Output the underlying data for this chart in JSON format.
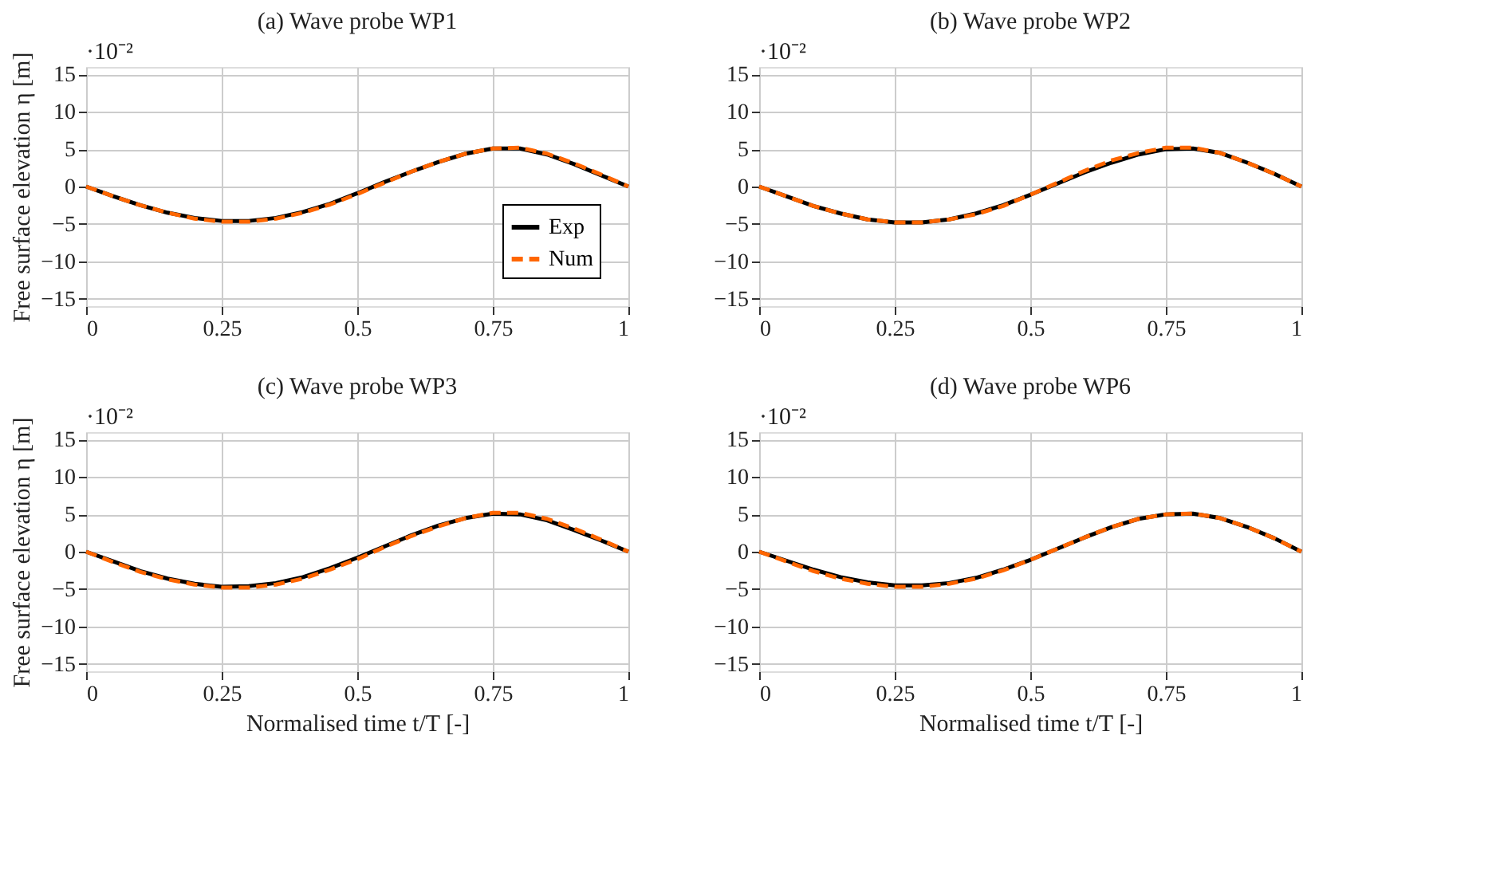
{
  "chart_data": [
    {
      "type": "line",
      "title": "(a) Wave probe WP1",
      "ylabel": "Free surface elevation η [m]",
      "annotations": [
        "·10⁻²"
      ],
      "xlim": [
        0,
        1
      ],
      "xticks": [
        0,
        0.25,
        0.5,
        0.75,
        1
      ],
      "ylim": [
        -16,
        16
      ],
      "yticks": [
        -15,
        -10,
        -5,
        0,
        5,
        10,
        15
      ],
      "grid": true,
      "legend": "bottom right",
      "marker": "none",
      "x": [
        0,
        0.05,
        0.1,
        0.15,
        0.2,
        0.25,
        0.3,
        0.35,
        0.4,
        0.45,
        0.5,
        0.55,
        0.6,
        0.65,
        0.7,
        0.75,
        0.8,
        0.85,
        0.9,
        0.95,
        1
      ],
      "series": [
        {
          "name": "Exp",
          "color": "#000000",
          "line_style": "solid",
          "values": [
            0,
            -1.3,
            -2.5,
            -3.5,
            -4.2,
            -4.6,
            -4.6,
            -4.2,
            -3.4,
            -2.3,
            -0.9,
            0.6,
            2.0,
            3.3,
            4.4,
            5.1,
            5.1,
            4.3,
            3.0,
            1.5,
            0
          ]
        },
        {
          "name": "Num",
          "color": "#ff6600",
          "line_style": "dashed",
          "values": [
            0,
            -1.3,
            -2.5,
            -3.5,
            -4.3,
            -4.7,
            -4.7,
            -4.3,
            -3.5,
            -2.4,
            -1.0,
            0.5,
            2.0,
            3.3,
            4.4,
            5.1,
            5.2,
            4.4,
            3.1,
            1.6,
            0
          ]
        }
      ]
    },
    {
      "type": "line",
      "title": "(b) Wave probe WP2",
      "annotations": [
        "·10⁻²"
      ],
      "xlim": [
        0,
        1
      ],
      "xticks": [
        0,
        0.25,
        0.5,
        0.75,
        1
      ],
      "ylim": [
        -16,
        16
      ],
      "yticks": [
        -15,
        -10,
        -5,
        0,
        5,
        10,
        15
      ],
      "grid": true,
      "marker": "none",
      "x": [
        0,
        0.05,
        0.1,
        0.15,
        0.2,
        0.25,
        0.3,
        0.35,
        0.4,
        0.45,
        0.5,
        0.55,
        0.6,
        0.65,
        0.7,
        0.75,
        0.8,
        0.85,
        0.9,
        0.95,
        1
      ],
      "series": [
        {
          "color": "#000000",
          "line_style": "solid",
          "values": [
            0,
            -1.3,
            -2.6,
            -3.6,
            -4.4,
            -4.8,
            -4.8,
            -4.4,
            -3.6,
            -2.5,
            -1.1,
            0.4,
            1.9,
            3.2,
            4.3,
            5.0,
            5.1,
            4.5,
            3.2,
            1.7,
            0
          ]
        },
        {
          "color": "#ff6600",
          "line_style": "dashed",
          "values": [
            0,
            -1.3,
            -2.6,
            -3.6,
            -4.4,
            -4.8,
            -4.8,
            -4.4,
            -3.7,
            -2.6,
            -1.1,
            0.5,
            2.1,
            3.5,
            4.5,
            5.2,
            5.2,
            4.5,
            3.2,
            1.7,
            0
          ]
        }
      ]
    },
    {
      "type": "line",
      "title": "(c) Wave probe WP3",
      "ylabel": "Free surface elevation η [m]",
      "xlabel": "Normalised time t/T [-]",
      "annotations": [
        "·10⁻²"
      ],
      "xlim": [
        0,
        1
      ],
      "xticks": [
        0,
        0.25,
        0.5,
        0.75,
        1
      ],
      "ylim": [
        -16,
        16
      ],
      "yticks": [
        -15,
        -10,
        -5,
        0,
        5,
        10,
        15
      ],
      "grid": true,
      "marker": "none",
      "x": [
        0,
        0.05,
        0.1,
        0.15,
        0.2,
        0.25,
        0.3,
        0.35,
        0.4,
        0.45,
        0.5,
        0.55,
        0.6,
        0.65,
        0.7,
        0.75,
        0.8,
        0.85,
        0.9,
        0.95,
        1
      ],
      "series": [
        {
          "color": "#000000",
          "line_style": "solid",
          "values": [
            0,
            -1.3,
            -2.6,
            -3.6,
            -4.3,
            -4.7,
            -4.6,
            -4.2,
            -3.4,
            -2.2,
            -0.8,
            0.7,
            2.2,
            3.5,
            4.5,
            5.1,
            5.0,
            4.2,
            2.9,
            1.5,
            0
          ]
        },
        {
          "color": "#ff6600",
          "line_style": "dashed",
          "values": [
            0,
            -1.4,
            -2.7,
            -3.7,
            -4.4,
            -4.8,
            -4.8,
            -4.4,
            -3.6,
            -2.4,
            -1.0,
            0.6,
            2.1,
            3.4,
            4.5,
            5.2,
            5.2,
            4.4,
            3.1,
            1.6,
            0
          ]
        }
      ]
    },
    {
      "type": "line",
      "title": "(d) Wave probe WP6",
      "xlabel": "Normalised time t/T [-]",
      "annotations": [
        "·10⁻²"
      ],
      "xlim": [
        0,
        1
      ],
      "xticks": [
        0,
        0.25,
        0.5,
        0.75,
        1
      ],
      "ylim": [
        -16,
        16
      ],
      "yticks": [
        -15,
        -10,
        -5,
        0,
        5,
        10,
        15
      ],
      "grid": true,
      "marker": "none",
      "x": [
        0,
        0.05,
        0.1,
        0.15,
        0.2,
        0.25,
        0.3,
        0.35,
        0.4,
        0.45,
        0.5,
        0.55,
        0.6,
        0.65,
        0.7,
        0.75,
        0.8,
        0.85,
        0.9,
        0.95,
        1
      ],
      "series": [
        {
          "color": "#000000",
          "line_style": "solid",
          "values": [
            0,
            -1.2,
            -2.4,
            -3.4,
            -4.1,
            -4.5,
            -4.5,
            -4.2,
            -3.5,
            -2.4,
            -1.1,
            0.4,
            1.9,
            3.3,
            4.4,
            5.0,
            5.1,
            4.5,
            3.3,
            1.8,
            0
          ]
        },
        {
          "color": "#ff6600",
          "line_style": "dashed",
          "values": [
            0,
            -1.3,
            -2.6,
            -3.6,
            -4.3,
            -4.7,
            -4.7,
            -4.3,
            -3.6,
            -2.5,
            -1.1,
            0.4,
            1.9,
            3.3,
            4.4,
            5.0,
            5.1,
            4.5,
            3.3,
            1.8,
            0
          ]
        }
      ]
    }
  ]
}
